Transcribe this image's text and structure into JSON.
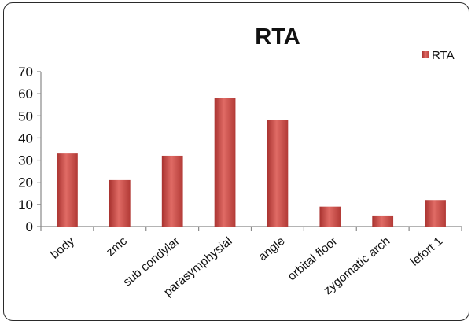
{
  "chart_data": {
    "type": "bar",
    "title": "RTA",
    "xlabel": "",
    "ylabel": "",
    "categories": [
      "body",
      "zmc",
      "sub condylar",
      "parasymphysial",
      "angle",
      "orbital floor",
      "zygomatic arch",
      "lefort 1"
    ],
    "series": [
      {
        "name": "RTA",
        "values": [
          33,
          21,
          32,
          58,
          48,
          9,
          5,
          12
        ],
        "color": "#c0504d"
      }
    ],
    "ylim": [
      0,
      70
    ],
    "yticks": [
      0,
      10,
      20,
      30,
      40,
      50,
      60,
      70
    ],
    "grid": false,
    "legend_position": "top-right"
  }
}
